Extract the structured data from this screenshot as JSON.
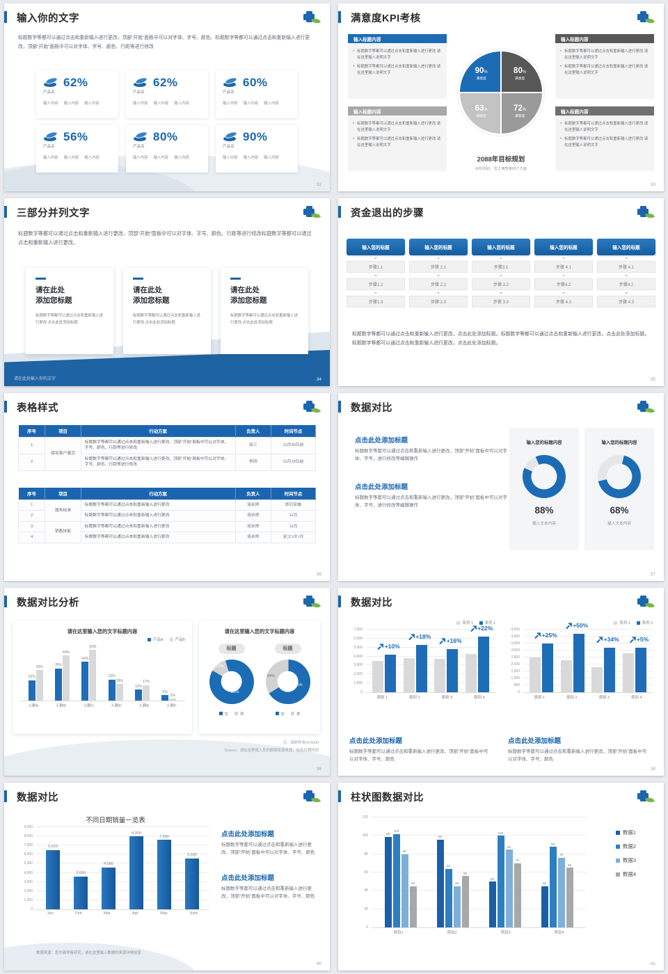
{
  "brand": {
    "primary_blue": "#1b66ad",
    "leaf_green": "#7ab648"
  },
  "slides": [
    {
      "page": "32",
      "title": "输入你的文字",
      "intro": "标题数字等都可以通过点击和重新输入进行更改，顶部“开始”面板中可以对字体、字号、颜色、标题数字等都可以通过点击和重新输入进行更改，顶部“开始”面板中可以对字体、字号、颜色、行距等进行修改",
      "cards": [
        {
          "name": "产品名",
          "value": "62%",
          "tags": [
            "输入内容",
            "输入内容",
            "输入内容"
          ]
        },
        {
          "name": "产品名",
          "value": "62%",
          "tags": [
            "输入内容",
            "输入内容",
            "输入内容"
          ]
        },
        {
          "name": "产品名",
          "value": "60%",
          "tags": [
            "输入内容",
            "输入内容",
            "输入内容"
          ]
        },
        {
          "name": "产品名",
          "value": "56%",
          "tags": [
            "输入内容",
            "输入内容",
            "输入内容"
          ]
        },
        {
          "name": "产品名",
          "value": "80%",
          "tags": [
            "输入内容",
            "输入内容",
            "输入内容"
          ]
        },
        {
          "name": "产品名",
          "value": "90%",
          "tags": [
            "输入内容",
            "输入内容",
            "输入内容"
          ]
        }
      ]
    },
    {
      "page": "33",
      "title": "满意度KPI考核",
      "center_title": "2088年目标规划",
      "center_sub": "目标规划：员工满意度四个方面",
      "boxes": [
        {
          "header": "输入标题内容",
          "color": "#1b6cb5",
          "bullets": [
            "标题数字等都可以通过点击和重新输入进行更改 请在这里输入说明文字",
            "标题数字等都可以通过点击和重新输入进行更改 请在这里输入说明文字"
          ]
        },
        {
          "header": "输入标题内容",
          "color": "#575757",
          "bullets": [
            "标题数字等都可以通过点击和重新输入进行更改 请在这里输入说明文字",
            "标题数字等都可以通过点击和重新输入进行更改 请在这里输入说明文字"
          ]
        },
        {
          "header": "输入标题内容",
          "color": "#a8a8a8",
          "bullets": [
            "标题数字等都可以通过点击和重新输入进行更改 请在这里输入说明文字",
            "标题数字等都可以通过点击和重新输入进行更改 请在这里输入说明文字"
          ]
        },
        {
          "header": "输入标题内容",
          "color": "#6f6f6f",
          "bullets": [
            "标题数字等都可以通过点击和重新输入进行更改 请在这里输入说明文字",
            "标题数字等都可以通过点击和重新输入进行更改 请在这里输入说明文字"
          ]
        }
      ]
    },
    {
      "page": "34",
      "title": "三部分并列文字",
      "intro": "标题数字等都可以通过点击和重新输入进行更改，顶部“开始”面板中可以对字体、字号、颜色、行距等进行修改标题数字等都可以通过点击和重新输入进行更改。",
      "footer": "请在此处输入你的文字",
      "cards": [
        {
          "title1": "请在此处",
          "title2": "添加您标题",
          "body": "标题数字等都可以通过点击和重新输入进行更改 点击此处添加标题"
        },
        {
          "title1": "请在此处",
          "title2": "添加您标题",
          "body": "标题数字等都可以通过点击和重新输入进行更改 点击此处添加标题"
        },
        {
          "title1": "请在此处",
          "title2": "添加您标题",
          "body": "标题数字等都可以通过点击和重新输入进行更改 点击此处添加标题"
        }
      ]
    },
    {
      "page": "35",
      "title": "资金退出的步骤",
      "body": "标题数字等都可以通过点击和重新输入进行更改，点击此处添加标题。标题数字等都可以通过点击和重新输入进行更改，点击此处添加标题。标题数字等都可以通过点击和重新输入进行更改，点击此处添加标题。",
      "columns": [
        {
          "header": "输入您的标题",
          "steps": [
            "步骤1.1",
            "步骤1.2",
            "步骤1.3"
          ]
        },
        {
          "header": "输入您的标题",
          "steps": [
            "步骤 2.1",
            "步骤 2.2",
            "步骤 2.3"
          ]
        },
        {
          "header": "输入您的标题",
          "steps": [
            "步骤3.1",
            "步骤 3.2",
            "步骤 3.3"
          ]
        },
        {
          "header": "输入您的标题",
          "steps": [
            "步骤 4.1",
            "步骤4.2",
            "步骤 4.3"
          ]
        },
        {
          "header": "输入您的标题",
          "steps": [
            "步骤 4.1",
            "步骤4.2",
            "步骤 4.3"
          ]
        }
      ]
    },
    {
      "page": "36",
      "title": "表格样式",
      "tables": [
        {
          "headers": [
            "序号",
            "项目",
            "行动方案",
            "负责人",
            "时间节点"
          ],
          "rows": [
            {
              "no": "1",
              "item": "保有客户激活",
              "item_span": 2,
              "action": "标题数字等都可以通过点击和重新输入进行更改，顶部“开始”面板中可以对字体、字号、颜色、行距等进行修改",
              "owner": "张三",
              "time": "11月30日前"
            },
            {
              "no": "2",
              "action": "标题数字等都可以通过点击和重新输入进行更改，顶部“开始”面板中可以对字体、字号、颜色、行距等进行修改",
              "owner": "李四",
              "time": "11月15日前"
            }
          ]
        },
        {
          "headers": [
            "序号",
            "项目",
            "行动方案",
            "负责人",
            "时间节点"
          ],
          "rows": [
            {
              "no": "1",
              "item": "服务标准",
              "item_span": 2,
              "action": "标题数字等都可以通过点击和重新输入进行更改",
              "owner": "培训师",
              "time": "即日实施"
            },
            {
              "no": "2",
              "action": "标题数字等都可以通过点击和重新输入进行更改",
              "owner": "培训师",
              "time": "11月"
            },
            {
              "no": "3",
              "item": "销售技能",
              "item_span": 2,
              "action": "标题数字等都可以通过点击和重新输入进行更改",
              "owner": "培训师",
              "time": "11月"
            },
            {
              "no": "4",
              "action": "标题数字等都可以通过点击和重新输入进行更改",
              "owner": "培训师",
              "time": "至少1次 /月"
            }
          ]
        }
      ]
    },
    {
      "page": "37",
      "title": "数据对比",
      "blocks": [
        {
          "heading": "点击此处添加标题",
          "body": "标题数字等都可以通过点击和重新输入进行更改，顶部“开始”面板中可以对字体、字号，进行修改等编辑操作"
        },
        {
          "heading": "点击此处添加标题",
          "body": "标题数字等都可以通过点击和重新输入进行更改，顶部“开始”面板中可以对字体、字号，进行修改等编辑操作"
        }
      ],
      "cards": [
        {
          "title": "输入您的标题内容",
          "value": "88%",
          "caption": "输入文本内容",
          "chart": "donut-a"
        },
        {
          "title": "输入您的标题内容",
          "value": "68%",
          "caption": "输入文本内容",
          "chart": "donut-b"
        }
      ]
    },
    {
      "page": "38",
      "title": "数据对比分析",
      "left_title": "请在这里输入您的文字标题内容",
      "right_title": "请在这里输入您的文字标题内容",
      "pill": "标题",
      "note1": "注：调研样本N=5000",
      "note2": "Source：请在这里填入您的数据来源来源，包含日期时间"
    },
    {
      "page": "39",
      "title": "数据对比",
      "blocks": [
        {
          "heading": "点击此处添加标题",
          "body": "标题数字等都可以通过点击和重新输入进行更改，顶部“开始”面板中可以对字体、字号、颜色"
        },
        {
          "heading": "点击此处添加标题",
          "body": "标题数字等都可以通过点击和重新输入进行更改，顶部“开始”面板中可以对字体、字号、颜色"
        }
      ]
    },
    {
      "page": "40",
      "title": "数据对比",
      "footnote": "数据来源：尼尔森零售研究，请在这里输入数据的来源详情信息",
      "blocks": [
        {
          "heading": "点击此处添加标题",
          "body": "标题数字等都可以通过点击和重新输入进行更改，顶部“开始”面板中可以对字体、字号、颜色"
        },
        {
          "heading": "点击此处添加标题",
          "body": "标题数字等都可以通过点击和重新输入进行更改，顶部“开始”面板中可以对字体、字号、颜色"
        }
      ]
    },
    {
      "page": "41",
      "title": "柱状图数据对比"
    }
  ],
  "chart_data": [
    {
      "id": "kpi-quadrant",
      "type": "pie",
      "title": "2088年目标规划",
      "subtitle": "目标规划：员工满意度四个方面",
      "slices": [
        {
          "pos": "tl",
          "display": "90",
          "suffix": "%",
          "label": "满意度",
          "value": 90,
          "color": "#1b6cb5"
        },
        {
          "pos": "tr",
          "display": "80",
          "suffix": "%",
          "label": "满意度",
          "value": 80,
          "color": "#575757"
        },
        {
          "pos": "bl",
          "display": "63",
          "suffix": "%",
          "label": "满意度",
          "value": 63,
          "color": "#c3c3c3"
        },
        {
          "pos": "br",
          "display": "72",
          "suffix": "%",
          "label": "满意度",
          "value": 72,
          "color": "#9a9a9a"
        }
      ]
    },
    {
      "id": "donut-a",
      "type": "pie",
      "values": [
        88,
        12
      ],
      "colors": [
        "#1b6cb5",
        "#e4e6e8"
      ],
      "center_label": "88%"
    },
    {
      "id": "donut-b",
      "type": "pie",
      "values": [
        68,
        32
      ],
      "colors": [
        "#1b6cb5",
        "#e4e6e8"
      ],
      "center_label": "68%"
    },
    {
      "id": "audience-bars",
      "type": "bar",
      "title": "请在这里输入您的文字标题内容",
      "categories": [
        "人群A",
        "人群B",
        "人群C",
        "人群D",
        "人群E",
        "人群F"
      ],
      "series": [
        {
          "name": "产品A",
          "color": "#1f6db7",
          "values": [
            22,
            35,
            42,
            23,
            12,
            6
          ]
        },
        {
          "name": "产品B",
          "color": "#d9d9d9",
          "values": [
            33,
            49,
            55,
            18,
            17,
            2
          ]
        }
      ],
      "value_suffix": "%",
      "ylim": [
        0,
        62
      ],
      "grid": false,
      "legend": "top-right"
    },
    {
      "id": "gender-donut-1",
      "type": "pie",
      "title": "标题",
      "slices": [
        {
          "label": "女",
          "value": 88,
          "color": "#1b6cb5"
        },
        {
          "label": "男",
          "value": 12,
          "color": "#d2d2d2"
        }
      ],
      "labels": [
        "12%",
        "88%"
      ]
    },
    {
      "id": "gender-donut-2",
      "type": "pie",
      "title": "标题",
      "slices": [
        {
          "label": "女",
          "value": 66,
          "color": "#1b6cb5"
        },
        {
          "label": "男",
          "value": 34,
          "color": "#d2d2d2"
        }
      ],
      "labels": [
        "34%",
        "66%"
      ]
    },
    {
      "id": "growth-left",
      "type": "bar",
      "categories": [
        "类别 1",
        "类别 2",
        "类别 3",
        "类别 4"
      ],
      "series": [
        {
          "name": "系列 1",
          "color": "#d9d9d9",
          "values": [
            3500,
            3800,
            3700,
            4300
          ]
        },
        {
          "name": "系列 2",
          "color": "#1f6db7",
          "values": [
            4200,
            5300,
            4800,
            6200
          ]
        }
      ],
      "annotations": [
        "+10%",
        "+18%",
        "+16%",
        "+22%"
      ],
      "ylim": [
        0,
        7000
      ],
      "ytick_step": 1000,
      "grid": true,
      "legend": "top-right"
    },
    {
      "id": "growth-right",
      "type": "bar",
      "categories": [
        "类别 1",
        "类别 2",
        "类别 3",
        "类别 4"
      ],
      "series": [
        {
          "name": "系列 1",
          "color": "#d9d9d9",
          "values": [
            2500,
            2300,
            1800,
            2800
          ]
        },
        {
          "name": "系列 2",
          "color": "#1f6db7",
          "values": [
            3500,
            4200,
            3200,
            3200
          ]
        }
      ],
      "annotations": [
        "+25%",
        "+50%",
        "+34%",
        "+5%"
      ],
      "ylim": [
        0,
        4500
      ],
      "ytick_step": 500,
      "grid": true,
      "legend": "top-right"
    },
    {
      "id": "monthly-sales",
      "type": "bar",
      "title": "不同日期销量一览表",
      "categories": [
        "Jan",
        "Feb",
        "Mar",
        "Apr",
        "May",
        "June"
      ],
      "values": [
        6520,
        3600,
        4580,
        8000,
        7600,
        5600
      ],
      "labels": [
        "6,520",
        "3,600",
        "4,580",
        "8,000",
        "7,600",
        "5,600"
      ],
      "ylim": [
        0,
        9000
      ],
      "ytick_step": 1000,
      "grid": true,
      "color": "#1f6db7"
    },
    {
      "id": "four-series",
      "type": "bar",
      "categories": [
        "项目1",
        "项目2",
        "项目3",
        "项目4"
      ],
      "series": [
        {
          "name": "数据1",
          "color": "#1a5fa8",
          "values": [
            99,
            96,
            50,
            45
          ]
        },
        {
          "name": "数据2",
          "color": "#2e7fc2",
          "values": [
            102,
            64,
            100,
            88
          ]
        },
        {
          "name": "数据3",
          "color": "#7fafd9",
          "values": [
            80,
            45,
            85,
            76
          ]
        },
        {
          "name": "数据4",
          "color": "#a8a8a8",
          "values": [
            45,
            56,
            70,
            65
          ]
        }
      ],
      "ylim": [
        0,
        120
      ],
      "ytick_step": 20,
      "grid": true,
      "legend": "right"
    }
  ]
}
